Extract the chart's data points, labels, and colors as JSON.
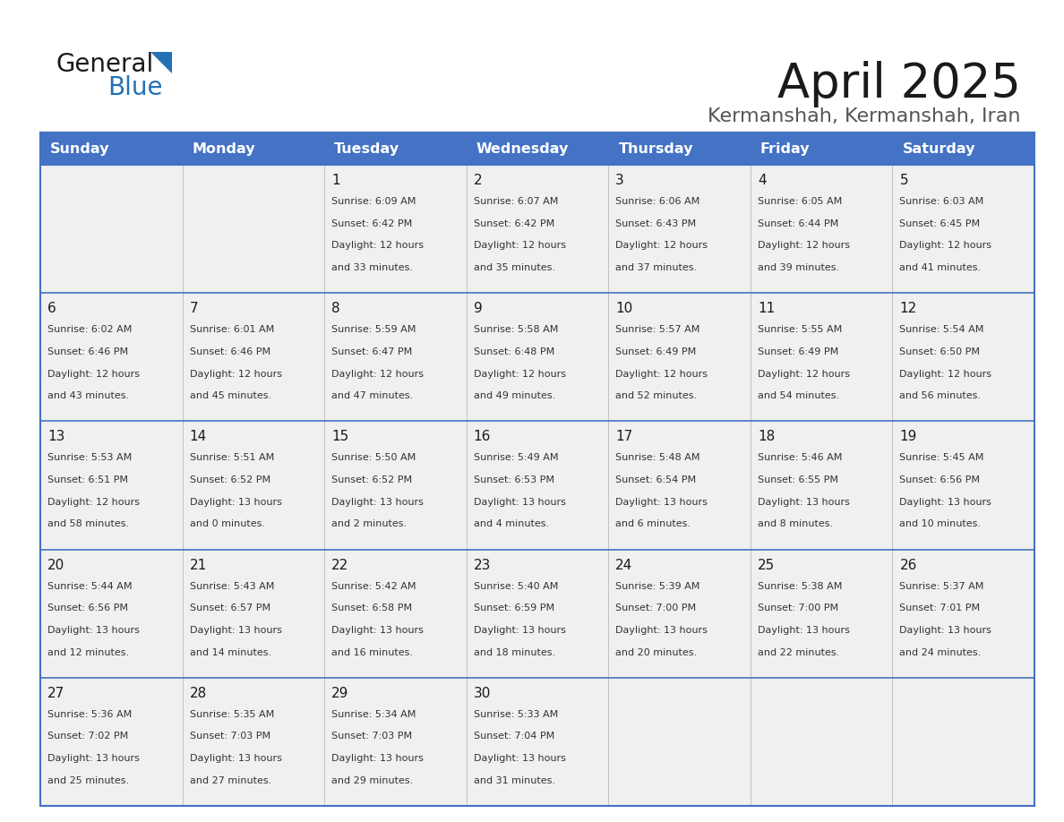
{
  "title": "April 2025",
  "subtitle": "Kermanshah, Kermanshah, Iran",
  "header_bg_color": "#4472C4",
  "header_text_color": "#FFFFFF",
  "cell_bg_color": "#F0F0F0",
  "divider_color": "#4472C4",
  "days_of_week": [
    "Sunday",
    "Monday",
    "Tuesday",
    "Wednesday",
    "Thursday",
    "Friday",
    "Saturday"
  ],
  "weeks": [
    [
      {
        "day": "",
        "sunrise": "",
        "sunset": "",
        "daylight": ""
      },
      {
        "day": "",
        "sunrise": "",
        "sunset": "",
        "daylight": ""
      },
      {
        "day": "1",
        "sunrise": "6:09 AM",
        "sunset": "6:42 PM",
        "daylight": "12 hours and 33 minutes."
      },
      {
        "day": "2",
        "sunrise": "6:07 AM",
        "sunset": "6:42 PM",
        "daylight": "12 hours and 35 minutes."
      },
      {
        "day": "3",
        "sunrise": "6:06 AM",
        "sunset": "6:43 PM",
        "daylight": "12 hours and 37 minutes."
      },
      {
        "day": "4",
        "sunrise": "6:05 AM",
        "sunset": "6:44 PM",
        "daylight": "12 hours and 39 minutes."
      },
      {
        "day": "5",
        "sunrise": "6:03 AM",
        "sunset": "6:45 PM",
        "daylight": "12 hours and 41 minutes."
      }
    ],
    [
      {
        "day": "6",
        "sunrise": "6:02 AM",
        "sunset": "6:46 PM",
        "daylight": "12 hours and 43 minutes."
      },
      {
        "day": "7",
        "sunrise": "6:01 AM",
        "sunset": "6:46 PM",
        "daylight": "12 hours and 45 minutes."
      },
      {
        "day": "8",
        "sunrise": "5:59 AM",
        "sunset": "6:47 PM",
        "daylight": "12 hours and 47 minutes."
      },
      {
        "day": "9",
        "sunrise": "5:58 AM",
        "sunset": "6:48 PM",
        "daylight": "12 hours and 49 minutes."
      },
      {
        "day": "10",
        "sunrise": "5:57 AM",
        "sunset": "6:49 PM",
        "daylight": "12 hours and 52 minutes."
      },
      {
        "day": "11",
        "sunrise": "5:55 AM",
        "sunset": "6:49 PM",
        "daylight": "12 hours and 54 minutes."
      },
      {
        "day": "12",
        "sunrise": "5:54 AM",
        "sunset": "6:50 PM",
        "daylight": "12 hours and 56 minutes."
      }
    ],
    [
      {
        "day": "13",
        "sunrise": "5:53 AM",
        "sunset": "6:51 PM",
        "daylight": "12 hours and 58 minutes."
      },
      {
        "day": "14",
        "sunrise": "5:51 AM",
        "sunset": "6:52 PM",
        "daylight": "13 hours and 0 minutes."
      },
      {
        "day": "15",
        "sunrise": "5:50 AM",
        "sunset": "6:52 PM",
        "daylight": "13 hours and 2 minutes."
      },
      {
        "day": "16",
        "sunrise": "5:49 AM",
        "sunset": "6:53 PM",
        "daylight": "13 hours and 4 minutes."
      },
      {
        "day": "17",
        "sunrise": "5:48 AM",
        "sunset": "6:54 PM",
        "daylight": "13 hours and 6 minutes."
      },
      {
        "day": "18",
        "sunrise": "5:46 AM",
        "sunset": "6:55 PM",
        "daylight": "13 hours and 8 minutes."
      },
      {
        "day": "19",
        "sunrise": "5:45 AM",
        "sunset": "6:56 PM",
        "daylight": "13 hours and 10 minutes."
      }
    ],
    [
      {
        "day": "20",
        "sunrise": "5:44 AM",
        "sunset": "6:56 PM",
        "daylight": "13 hours and 12 minutes."
      },
      {
        "day": "21",
        "sunrise": "5:43 AM",
        "sunset": "6:57 PM",
        "daylight": "13 hours and 14 minutes."
      },
      {
        "day": "22",
        "sunrise": "5:42 AM",
        "sunset": "6:58 PM",
        "daylight": "13 hours and 16 minutes."
      },
      {
        "day": "23",
        "sunrise": "5:40 AM",
        "sunset": "6:59 PM",
        "daylight": "13 hours and 18 minutes."
      },
      {
        "day": "24",
        "sunrise": "5:39 AM",
        "sunset": "7:00 PM",
        "daylight": "13 hours and 20 minutes."
      },
      {
        "day": "25",
        "sunrise": "5:38 AM",
        "sunset": "7:00 PM",
        "daylight": "13 hours and 22 minutes."
      },
      {
        "day": "26",
        "sunrise": "5:37 AM",
        "sunset": "7:01 PM",
        "daylight": "13 hours and 24 minutes."
      }
    ],
    [
      {
        "day": "27",
        "sunrise": "5:36 AM",
        "sunset": "7:02 PM",
        "daylight": "13 hours and 25 minutes."
      },
      {
        "day": "28",
        "sunrise": "5:35 AM",
        "sunset": "7:03 PM",
        "daylight": "13 hours and 27 minutes."
      },
      {
        "day": "29",
        "sunrise": "5:34 AM",
        "sunset": "7:03 PM",
        "daylight": "13 hours and 29 minutes."
      },
      {
        "day": "30",
        "sunrise": "5:33 AM",
        "sunset": "7:04 PM",
        "daylight": "13 hours and 31 minutes."
      },
      {
        "day": "",
        "sunrise": "",
        "sunset": "",
        "daylight": ""
      },
      {
        "day": "",
        "sunrise": "",
        "sunset": "",
        "daylight": ""
      },
      {
        "day": "",
        "sunrise": "",
        "sunset": "",
        "daylight": ""
      }
    ]
  ],
  "logo_color_general": "#1A1A1A",
  "logo_color_blue": "#2471B5",
  "logo_triangle_color": "#2471B5"
}
